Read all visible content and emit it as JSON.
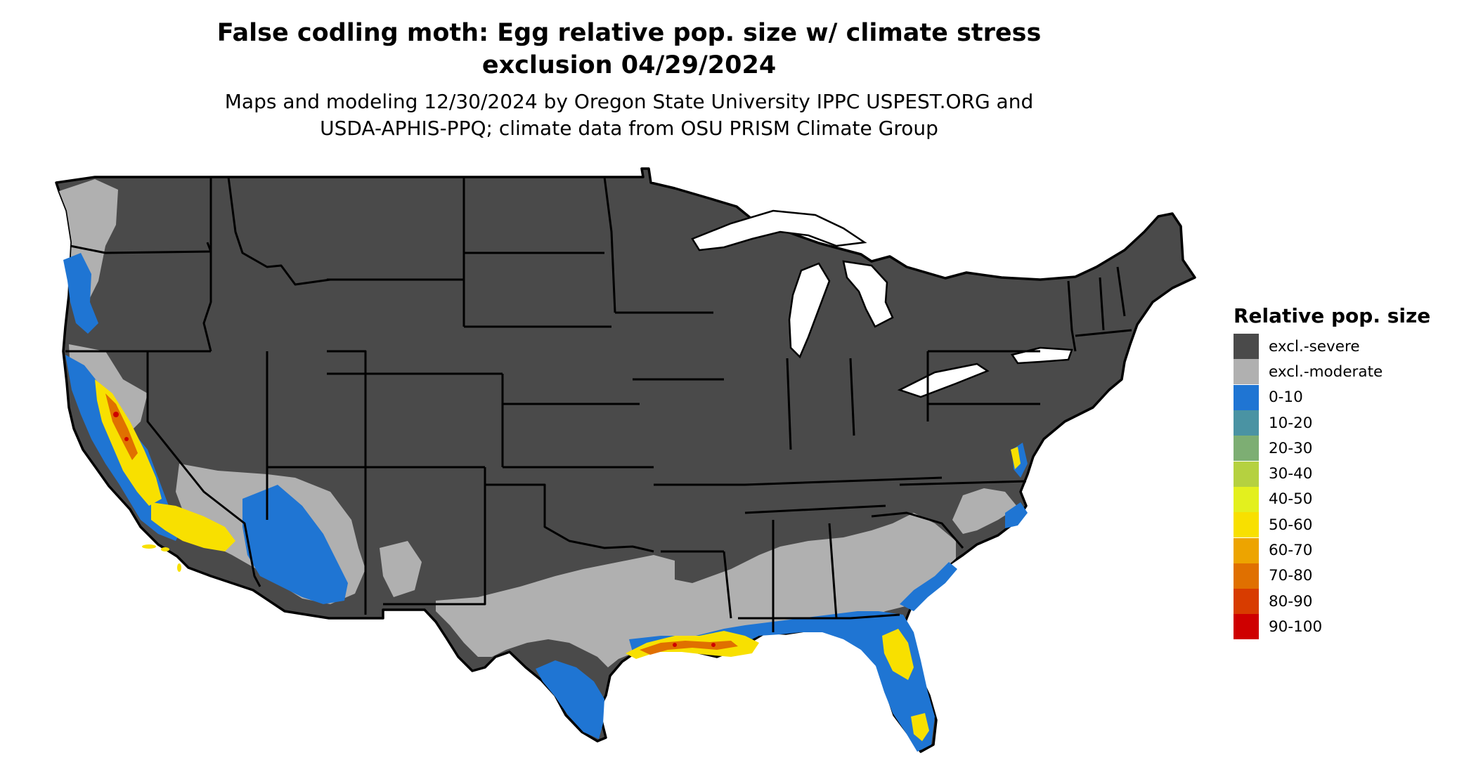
{
  "title": {
    "line1": "False codling moth: Egg relative pop. size w/ climate stress",
    "line2": "exclusion 04/29/2024"
  },
  "subtitle": {
    "line1": "Maps and modeling 12/30/2024 by Oregon State University IPPC USPEST.ORG and",
    "line2": "USDA-APHIS-PPQ; climate data from OSU PRISM Climate Group"
  },
  "legend": {
    "title": "Relative pop. size",
    "items": [
      {
        "label": "excl.-severe",
        "color": "#4a4a4a"
      },
      {
        "label": "excl.-moderate",
        "color": "#b0b0b0"
      },
      {
        "label": "0-10",
        "color": "#1f75d3"
      },
      {
        "label": "10-20",
        "color": "#4a93a3"
      },
      {
        "label": "20-30",
        "color": "#7dae73"
      },
      {
        "label": "30-40",
        "color": "#b5d140"
      },
      {
        "label": "40-50",
        "color": "#e3f01e"
      },
      {
        "label": "50-60",
        "color": "#f8e000"
      },
      {
        "label": "60-70",
        "color": "#eda400"
      },
      {
        "label": "70-80",
        "color": "#e07000"
      },
      {
        "label": "80-90",
        "color": "#d83c00"
      },
      {
        "label": "90-100",
        "color": "#cf0000"
      }
    ]
  },
  "map": {
    "region": "Contiguous United States",
    "colors": {
      "severe": "#4a4a4a",
      "moderate": "#b0b0b0",
      "low": "#1f75d3",
      "mid": "#f8e000",
      "high": "#e07000",
      "border": "#000000"
    }
  }
}
